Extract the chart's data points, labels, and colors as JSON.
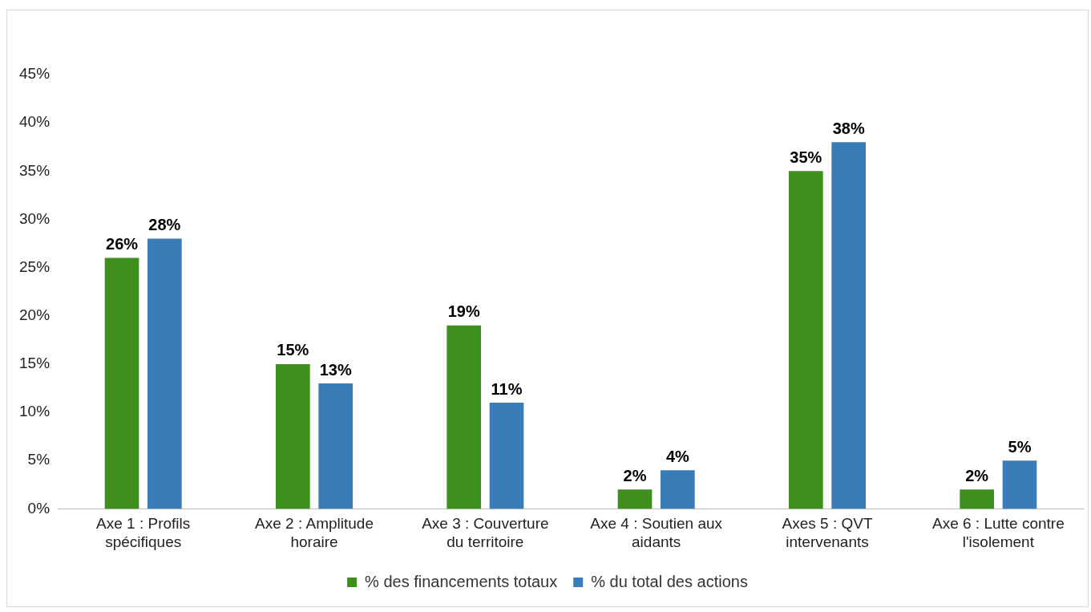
{
  "chart_data": {
    "type": "bar",
    "categories": [
      "Axe 1 : Profils spécifiques",
      "Axe 2 : Amplitude horaire",
      "Axe 3 : Couverture du territoire",
      "Axe 4 : Soutien aux aidants",
      "Axes 5 : QVT intervenants",
      "Axe 6 : Lutte contre l'isolement"
    ],
    "series": [
      {
        "name": "% des financements totaux",
        "color": "#3f8f1f",
        "values": [
          26,
          15,
          19,
          2,
          35,
          2
        ],
        "value_labels": [
          "26%",
          "15%",
          "19%",
          "2%",
          "35%",
          "2%"
        ]
      },
      {
        "name": "% du total des actions",
        "color": "#3a7cb8",
        "values": [
          28,
          13,
          11,
          4,
          38,
          5
        ],
        "value_labels": [
          "28%",
          "13%",
          "11%",
          "4%",
          "38%",
          "5%"
        ]
      }
    ],
    "ylim": [
      0,
      45
    ],
    "yticks": [
      {
        "value": 0,
        "label": "0%"
      },
      {
        "value": 5,
        "label": "5%"
      },
      {
        "value": 10,
        "label": "10%"
      },
      {
        "value": 15,
        "label": "15%"
      },
      {
        "value": 20,
        "label": "20%"
      },
      {
        "value": 25,
        "label": "25%"
      },
      {
        "value": 30,
        "label": "30%"
      },
      {
        "value": 35,
        "label": "35%"
      },
      {
        "value": 40,
        "label": "40%"
      },
      {
        "value": 45,
        "label": "45%"
      }
    ],
    "grid": false,
    "legend": "bottom"
  }
}
